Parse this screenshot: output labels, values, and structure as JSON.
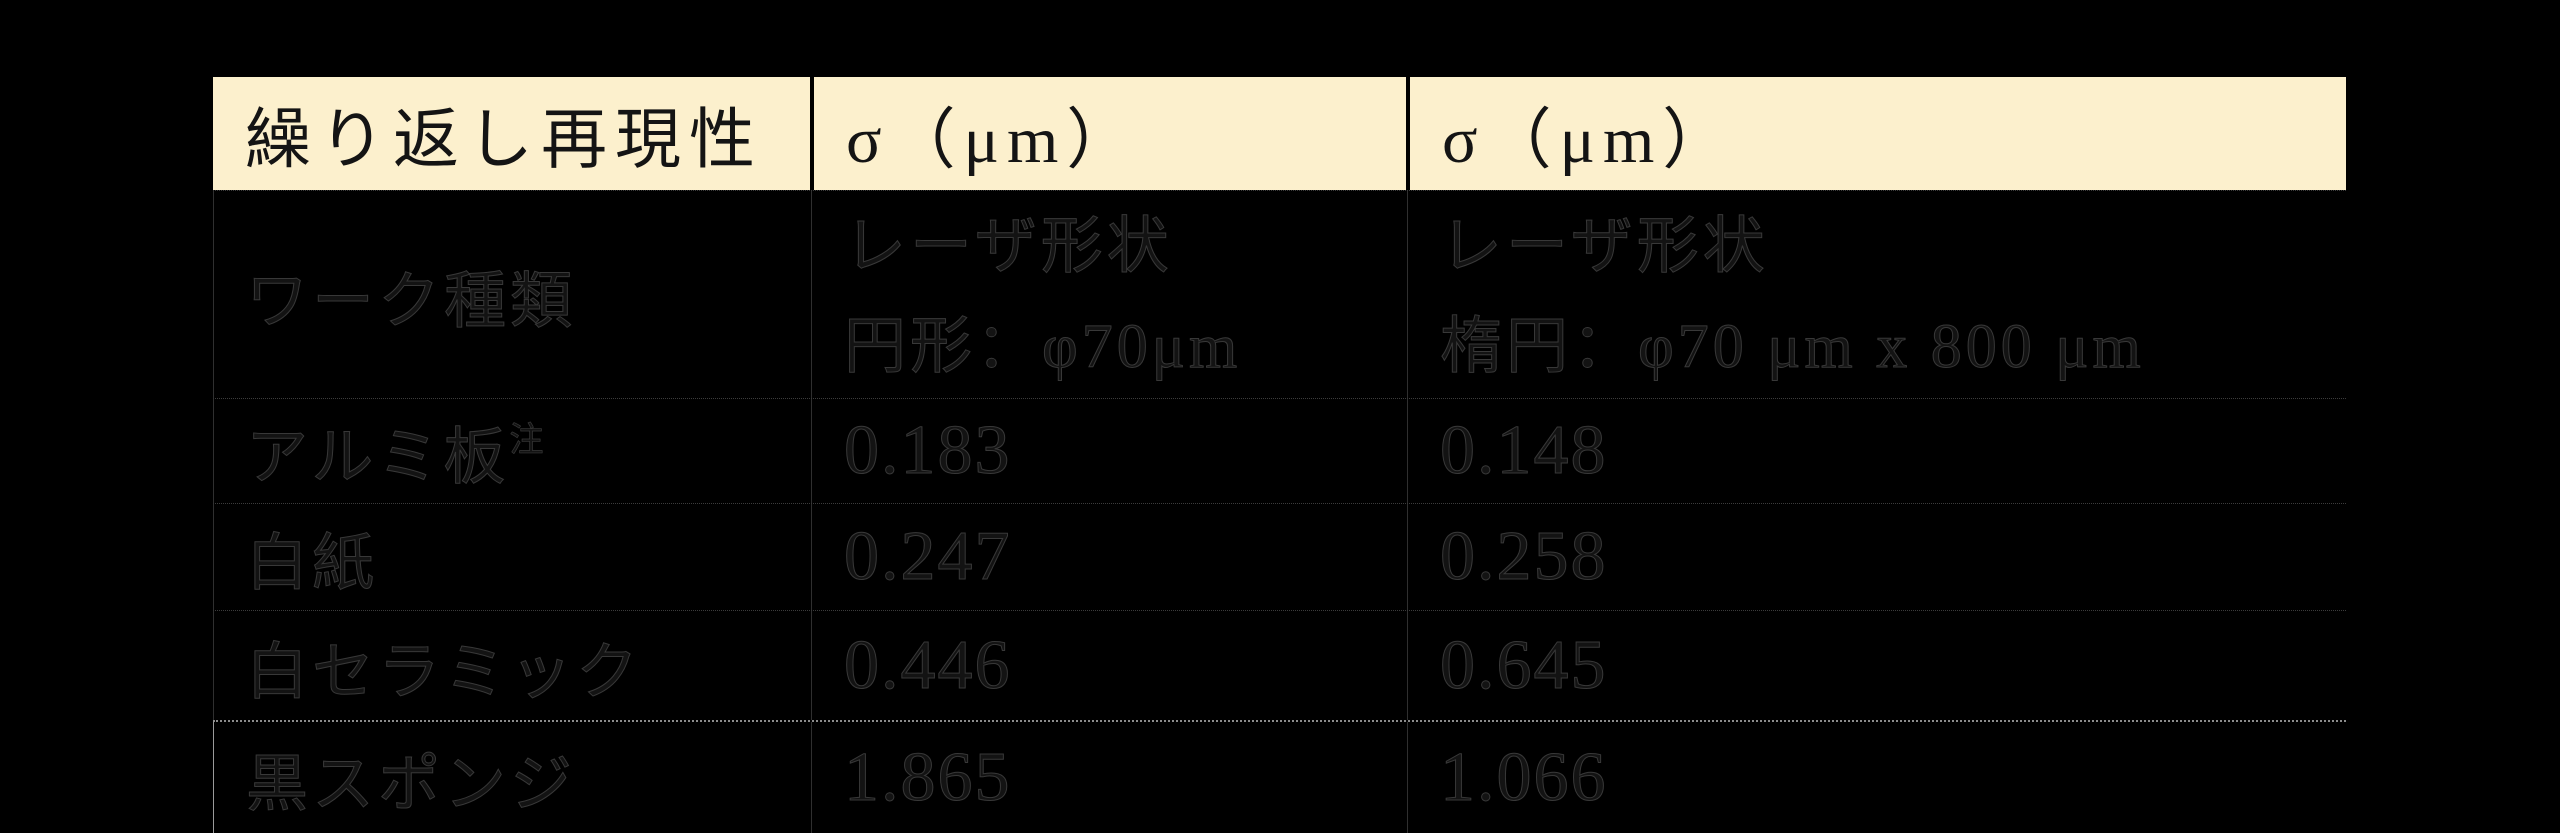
{
  "colors": {
    "page_background": "#000000",
    "header_background": "#FCF0CD",
    "header_text": "#141414",
    "header_divider": "#000000",
    "body_grid_line": "#3a3a3a",
    "last_row_separator": "#8c8c8c",
    "body_text_outline": "#383838"
  },
  "table": {
    "header": {
      "cells": [
        "繰り返し再現性",
        "σ（μm）",
        "σ（μm）"
      ]
    },
    "subheader": {
      "col1": "ワーク種類",
      "col2_line1": "レーザ形状",
      "col2_line2": "円形：φ70μm",
      "col3_line1": "レーザ形状",
      "col3_line2": "楕円：φ70 μm x 800 μm"
    },
    "rows": [
      {
        "label": "アルミ板",
        "note": "注",
        "sigma_circle": "0.183",
        "sigma_ellipse": "0.148"
      },
      {
        "label": "白紙",
        "note": "",
        "sigma_circle": "0.247",
        "sigma_ellipse": "0.258"
      },
      {
        "label": "白セラミック",
        "note": "",
        "sigma_circle": "0.446",
        "sigma_ellipse": "0.645"
      },
      {
        "label": "黒スポンジ",
        "note": "",
        "sigma_circle": "1.865",
        "sigma_ellipse": "1.066"
      }
    ]
  }
}
